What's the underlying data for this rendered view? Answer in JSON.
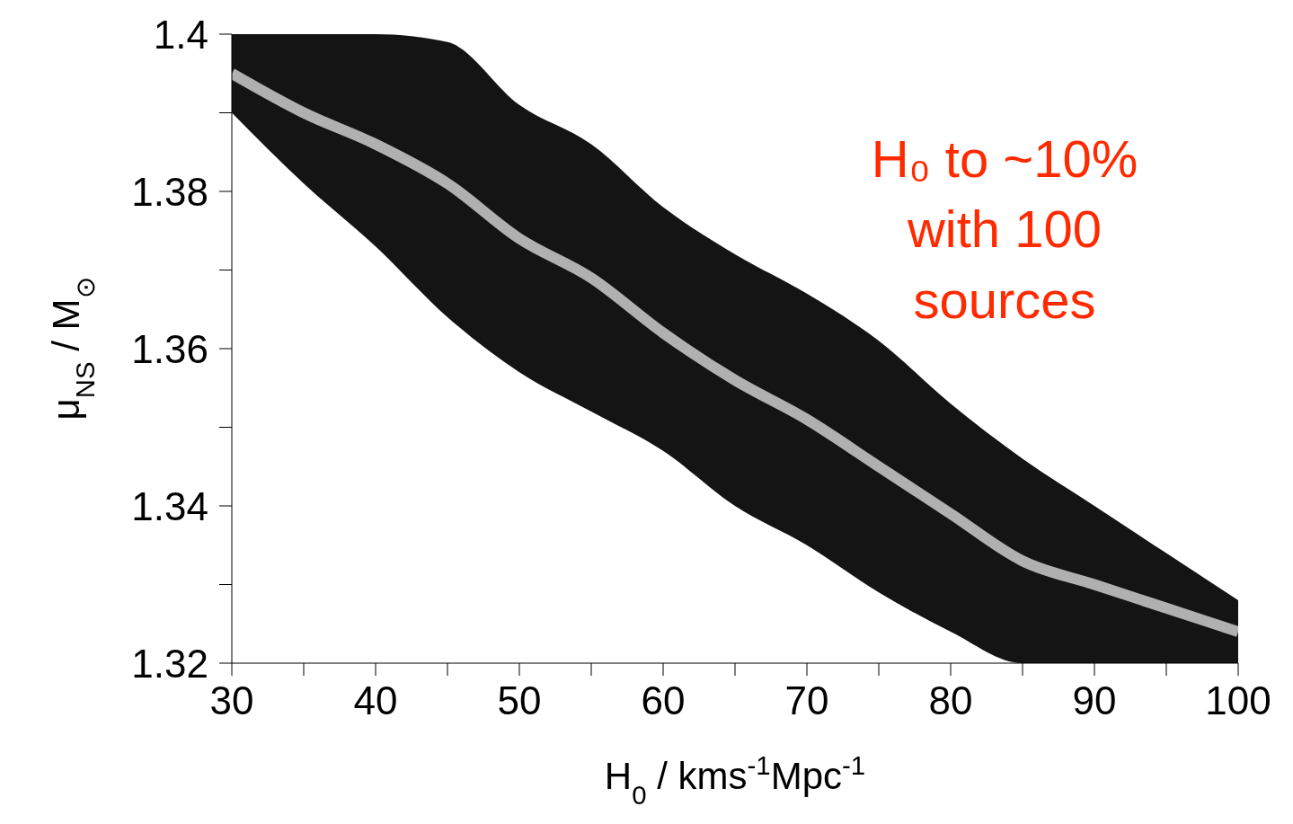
{
  "chart_data": {
    "type": "line",
    "xlabel": "H$_{0}$ / kms$^{-1}$Mpc$^{-1}$",
    "ylabel": "μ$_{NS}$ / M$_{⊙}$",
    "x": [
      30,
      35,
      40,
      45,
      50,
      55,
      60,
      65,
      70,
      75,
      80,
      85,
      90,
      95,
      100
    ],
    "series": [
      {
        "color": "#b0b0b0",
        "values": [
          1.395,
          1.39,
          1.386,
          1.381,
          1.374,
          1.369,
          1.362,
          1.356,
          1.351,
          1.345,
          1.339,
          1.333,
          1.33,
          1.327,
          1.324
        ],
        "lower": [
          1.39,
          1.381,
          1.373,
          1.364,
          1.357,
          1.352,
          1.347,
          1.34,
          1.335,
          1.329,
          1.324,
          1.32,
          1.32,
          1.32,
          1.32
        ],
        "upper": [
          1.4,
          1.4,
          1.4,
          1.399,
          1.391,
          1.386,
          1.378,
          1.372,
          1.367,
          1.361,
          1.353,
          1.346,
          1.34,
          1.334,
          1.328
        ]
      }
    ],
    "xlim": [
      30,
      100
    ],
    "xticks": [
      30,
      {
        "value": 35,
        "label": null
      },
      40,
      {
        "value": 45,
        "label": null
      },
      50,
      {
        "value": 55,
        "label": null
      },
      60,
      {
        "value": 65,
        "label": null
      },
      70,
      {
        "value": 75,
        "label": null
      },
      80,
      {
        "value": 85,
        "label": null
      },
      90,
      {
        "value": 95,
        "label": null
      },
      100
    ],
    "ylim": [
      1.32,
      1.4
    ],
    "yticks": [
      1.32,
      {
        "value": 1.33,
        "label": null
      },
      1.34,
      {
        "value": 1.35,
        "label": null
      },
      1.36,
      {
        "value": 1.37,
        "label": null
      },
      1.38,
      {
        "value": 1.39,
        "label": null
      },
      1.4
    ],
    "line_style": "solid",
    "annotations": [
      "H₀ to ~10%\nwith 100\nsources"
    ]
  }
}
